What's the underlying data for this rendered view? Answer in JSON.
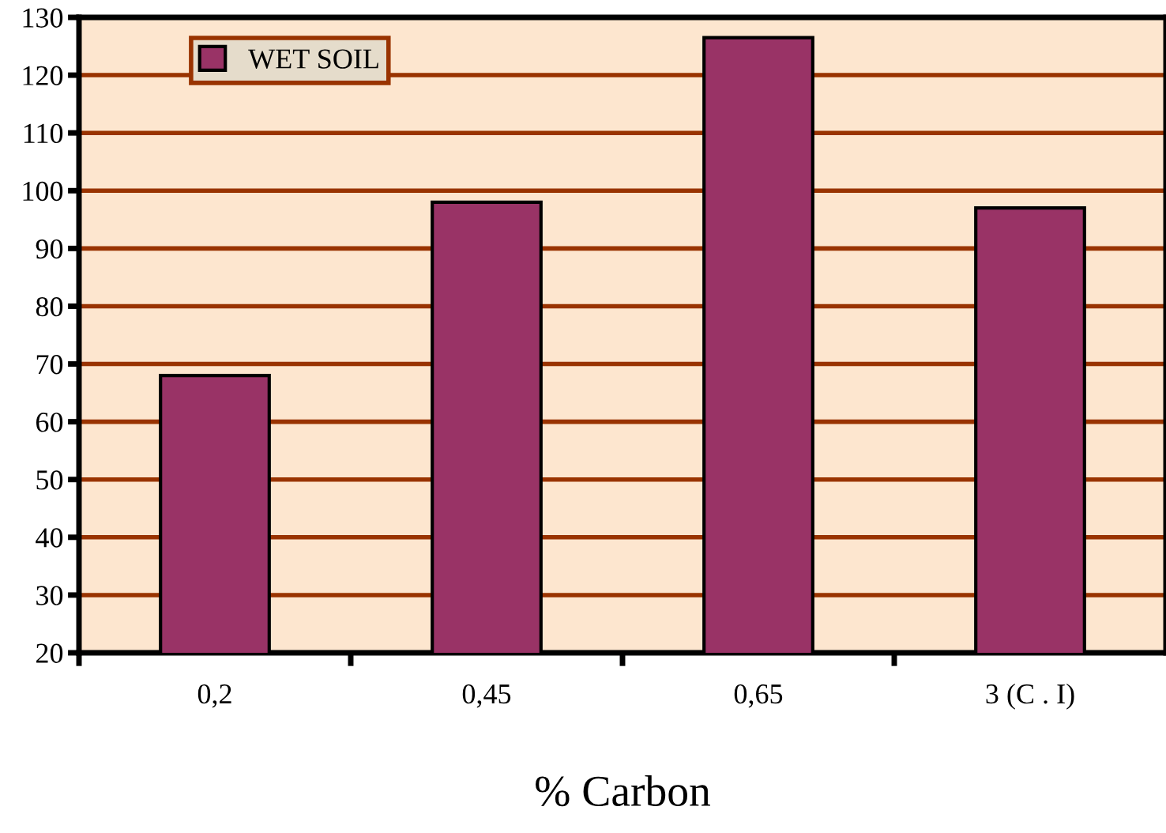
{
  "chart_data": {
    "type": "bar",
    "xlabel": "% Carbon",
    "categories": [
      "0,2",
      "0,45",
      "0,65",
      "3 (C . I)"
    ],
    "series": [
      {
        "name": "WET SOIL",
        "color": "#993366",
        "values": [
          68,
          98,
          126.5,
          97
        ]
      }
    ],
    "ylim": [
      20,
      130
    ],
    "yticks": [
      20,
      30,
      40,
      50,
      60,
      70,
      80,
      90,
      100,
      110,
      120,
      130
    ],
    "grid": "y",
    "legend": "top left"
  }
}
